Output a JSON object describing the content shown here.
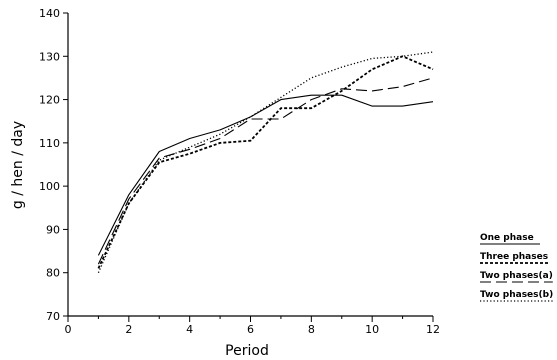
{
  "chart_data": {
    "type": "line",
    "title": "",
    "xlabel": "Period",
    "ylabel": "g / hen / day",
    "xlim": [
      0,
      12
    ],
    "ylim": [
      70,
      140
    ],
    "xticks": [
      0,
      2,
      4,
      6,
      8,
      10,
      12
    ],
    "yticks": [
      70,
      80,
      90,
      100,
      110,
      120,
      130,
      140
    ],
    "grid": false,
    "legend_position": "right",
    "x": [
      1,
      2,
      3,
      4,
      5,
      6,
      7,
      8,
      9,
      10,
      11,
      12
    ],
    "series": [
      {
        "name": "One phase",
        "style": "solid",
        "values": [
          84,
          98,
          108,
          111,
          113,
          116,
          120,
          121,
          121,
          118.5,
          118.5,
          119.5
        ]
      },
      {
        "name": "Three phases",
        "style": "short-dash",
        "values": [
          81,
          96,
          105.5,
          107.5,
          110,
          110.5,
          118,
          118,
          122,
          127,
          130,
          127
        ]
      },
      {
        "name": "Two phases(a)",
        "style": "long-dash",
        "values": [
          82,
          97,
          106.5,
          108.5,
          111,
          115.5,
          115.5,
          120,
          122.5,
          122,
          123,
          125
        ]
      },
      {
        "name": "Two phases(b)",
        "style": "dotted",
        "values": [
          80,
          96,
          106,
          109,
          112,
          116,
          120.5,
          125,
          127.5,
          129.5,
          130,
          131
        ]
      }
    ]
  }
}
